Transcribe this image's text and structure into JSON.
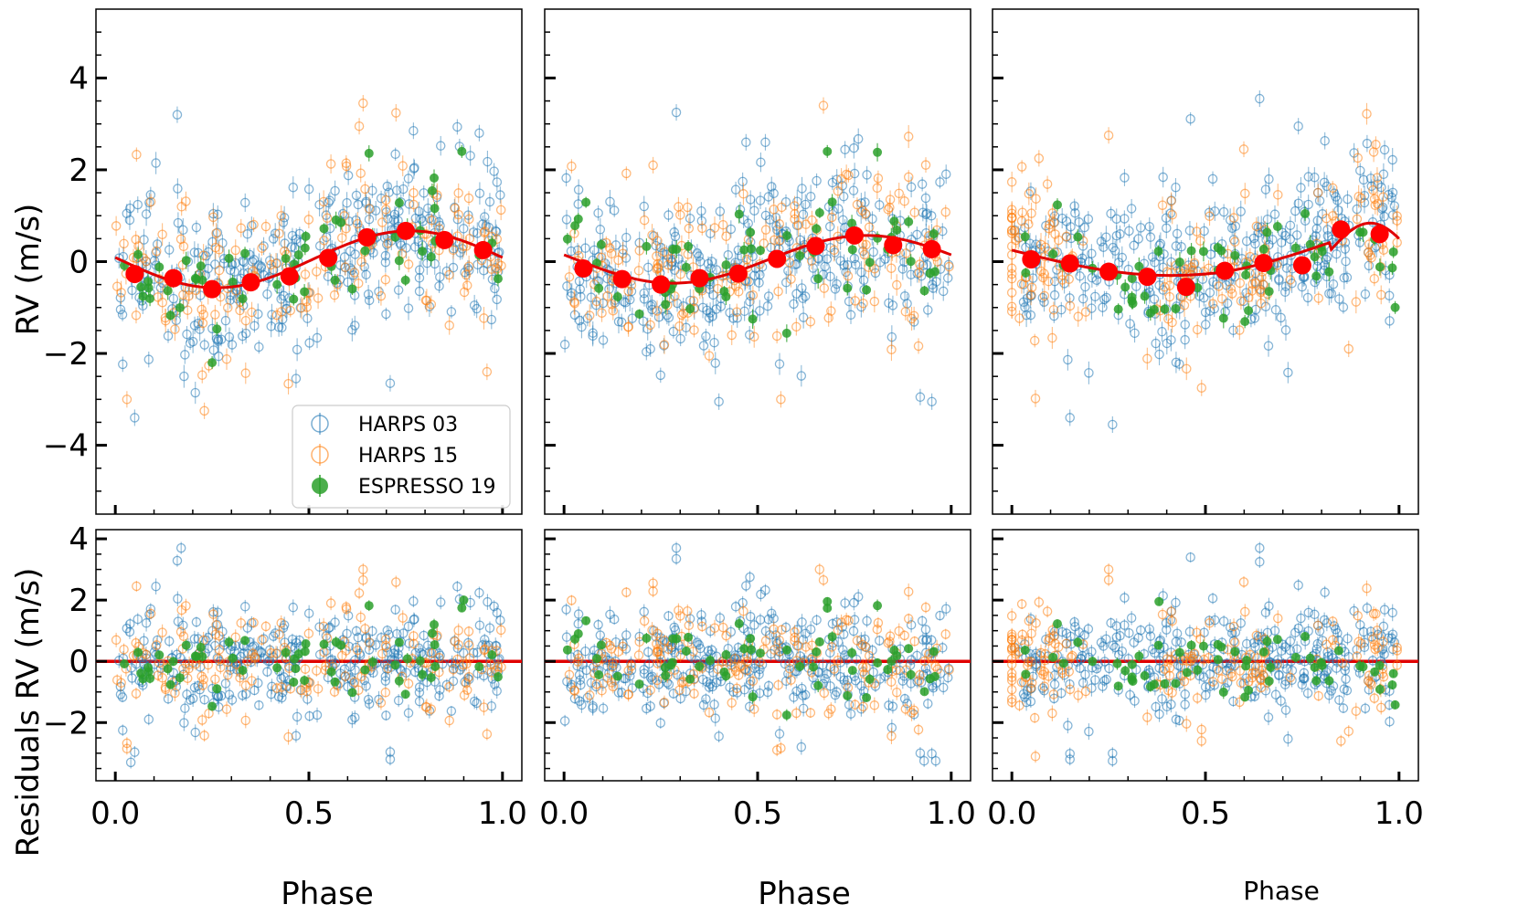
{
  "chart_data": {
    "type": "scatter",
    "description_ref": "Radial velocity phase-folded plots (3 panels) with residuals",
    "xlabel": "Phase",
    "ylabel_top": "RV (m/s)",
    "ylabel_bottom": "Residuals RV (m/s)",
    "xlim": [
      -0.05,
      1.05
    ],
    "ylim_top": [
      -5.5,
      5.5
    ],
    "ylim_bottom": [
      -3.9,
      4.3
    ],
    "x_ticks": [
      0.0,
      0.5,
      1.0
    ],
    "x_tick_labels": [
      "0.0",
      "0.5",
      "1.0"
    ],
    "y_ticks_top": [
      -4,
      -2,
      0,
      2,
      4
    ],
    "y_tick_labels_top": [
      "−4",
      "−2",
      "0",
      "2",
      "4"
    ],
    "y_ticks_bottom": [
      -2,
      0,
      2,
      4
    ],
    "y_tick_labels_bottom": [
      "−2",
      "0",
      "2",
      "4"
    ],
    "colors": {
      "harps03": "#1f77b4",
      "harps15": "#ff7f0e",
      "espresso19": "#2ca02c",
      "model": "#e00000",
      "binned": "#ff0000"
    },
    "legend": {
      "position": "lower-right of first panel",
      "entries": [
        {
          "label": "HARPS 03",
          "series": "harps03"
        },
        {
          "label": "HARPS 15",
          "series": "harps15"
        },
        {
          "label": "ESPRESSO 19",
          "series": "espresso19"
        }
      ]
    },
    "panels": [
      {
        "name": "panel-1",
        "model": {
          "amplitude": 0.62,
          "offset": 0.05,
          "phase_peak": 0.76
        },
        "binned": {
          "x": [
            0.05,
            0.15,
            0.25,
            0.35,
            0.45,
            0.55,
            0.65,
            0.75,
            0.85,
            0.95
          ],
          "y": [
            -0.27,
            -0.36,
            -0.6,
            -0.45,
            -0.32,
            0.08,
            0.53,
            0.67,
            0.47,
            0.25
          ]
        },
        "seed": 11,
        "counts": {
          "harps03": 340,
          "harps15": 170,
          "espresso19": 55
        },
        "extremes": {
          "harps03": [
            [
              0.16,
              3.2
            ],
            [
              0.05,
              -3.4
            ],
            [
              0.71,
              -2.65
            ],
            [
              0.94,
              2.8
            ],
            [
              0.77,
              2.85
            ]
          ],
          "harps15": [
            [
              0.64,
              3.45
            ],
            [
              0.23,
              -3.25
            ],
            [
              0.03,
              -3.0
            ],
            [
              0.63,
              2.95
            ],
            [
              0.96,
              -2.4
            ]
          ],
          "espresso19": [
            [
              0.895,
              2.4
            ],
            [
              0.25,
              -2.2
            ]
          ]
        },
        "residual_extremes": {
          "harps03": [
            [
              0.17,
              3.7
            ],
            [
              0.71,
              -3.2
            ],
            [
              0.04,
              -3.3
            ]
          ],
          "harps15": [
            [
              0.64,
              3.0
            ],
            [
              0.03,
              -2.85
            ]
          ],
          "espresso19": [
            [
              0.9,
              2.0
            ]
          ]
        }
      },
      {
        "name": "panel-2",
        "model": {
          "amplitude": 0.52,
          "offset": 0.05,
          "phase_peak": 0.78
        },
        "binned": {
          "x": [
            0.05,
            0.15,
            0.25,
            0.35,
            0.45,
            0.55,
            0.65,
            0.75,
            0.85,
            0.95
          ],
          "y": [
            -0.15,
            -0.38,
            -0.5,
            -0.36,
            -0.26,
            0.06,
            0.34,
            0.57,
            0.36,
            0.27
          ]
        },
        "seed": 23,
        "counts": {
          "harps03": 340,
          "harps15": 170,
          "espresso19": 55
        },
        "extremes": {
          "harps03": [
            [
              0.29,
              3.25
            ],
            [
              0.47,
              2.6
            ],
            [
              0.52,
              2.6
            ],
            [
              0.92,
              -2.95
            ],
            [
              0.95,
              -3.05
            ],
            [
              0.4,
              -3.05
            ]
          ],
          "harps15": [
            [
              0.67,
              3.4
            ],
            [
              0.23,
              2.1
            ],
            [
              0.56,
              -3.0
            ]
          ],
          "espresso19": [
            [
              0.68,
              2.4
            ]
          ]
        },
        "residual_extremes": {
          "harps03": [
            [
              0.29,
              3.7
            ],
            [
              0.48,
              2.75
            ],
            [
              0.93,
              -3.25
            ],
            [
              0.96,
              -3.25
            ]
          ],
          "harps15": [
            [
              0.23,
              2.55
            ],
            [
              0.66,
              3.0
            ],
            [
              0.55,
              -2.9
            ]
          ],
          "espresso19": [
            [
              0.68,
              1.95
            ]
          ]
        }
      },
      {
        "name": "panel-3",
        "model": {
          "amplitude": 0.0,
          "offset": 0.0,
          "phase_peak": 0.0
        },
        "binned": {
          "x": [
            0.05,
            0.15,
            0.25,
            0.35,
            0.45,
            0.55,
            0.65,
            0.75,
            0.85,
            0.95
          ],
          "y": [
            0.05,
            -0.04,
            -0.22,
            -0.33,
            -0.55,
            -0.2,
            -0.03,
            -0.08,
            0.7,
            0.6
          ]
        },
        "seed": 37,
        "counts": {
          "harps03": 340,
          "harps15": 170,
          "espresso19": 55
        },
        "extremes": {
          "harps03": [
            [
              0.64,
              3.55
            ],
            [
              0.74,
              2.95
            ],
            [
              0.15,
              -3.4
            ],
            [
              0.26,
              -3.55
            ]
          ],
          "harps15": [
            [
              0.25,
              2.75
            ],
            [
              0.07,
              2.25
            ],
            [
              0.94,
              2.55
            ],
            [
              0.49,
              -2.75
            ],
            [
              0.87,
              -1.9
            ]
          ],
          "espresso19": [
            [
              0.95,
              0.65
            ],
            [
              0.99,
              -1.0
            ]
          ]
        },
        "residual_extremes": {
          "harps03": [
            [
              0.64,
              3.7
            ],
            [
              0.26,
              -3.25
            ],
            [
              0.15,
              -3.2
            ]
          ],
          "harps15": [
            [
              0.25,
              3.0
            ],
            [
              0.49,
              -2.6
            ],
            [
              0.85,
              -2.6
            ]
          ],
          "espresso19": [
            [
              0.38,
              1.95
            ]
          ]
        }
      }
    ]
  }
}
